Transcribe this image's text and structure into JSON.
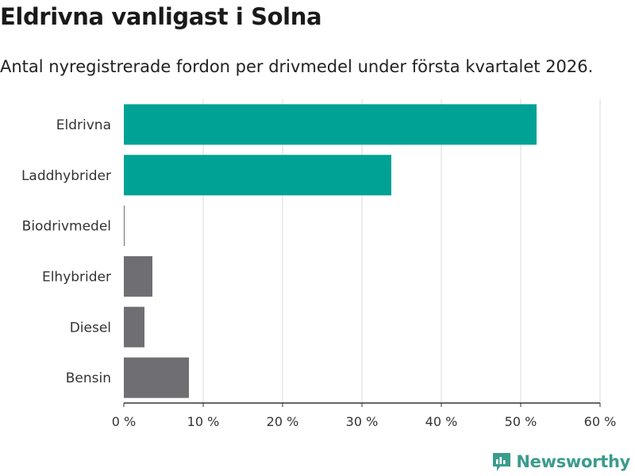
{
  "chart_data": {
    "type": "bar",
    "orientation": "horizontal",
    "title": "Eldrivna vanligast i Solna",
    "subtitle": "Antal nyregistrerade fordon per drivmedel under första kvartalet 2026.",
    "categories": [
      "Eldrivna",
      "Laddhybrider",
      "Biodrivmedel",
      "Elhybrider",
      "Diesel",
      "Bensin"
    ],
    "values": [
      52,
      33.7,
      0.1,
      3.6,
      2.6,
      8.2
    ],
    "value_unit": "%",
    "xlim": [
      0,
      60
    ],
    "xticks": [
      0,
      10,
      20,
      30,
      40,
      50,
      60
    ],
    "tick_labels": [
      "0 %",
      "10 %",
      "20 %",
      "30 %",
      "40 %",
      "50 %",
      "60 %"
    ],
    "xlabel": "",
    "ylabel": "",
    "grid": true,
    "colors": [
      "#00a295",
      "#00a295",
      "#6f6e73",
      "#6f6e73",
      "#6f6e73",
      "#6f6e73"
    ],
    "grid_color": "#d9d9d9",
    "axis_color": "#333333"
  },
  "branding": {
    "logo_text": "Newsworthy",
    "logo_color": "#3a9c8c"
  }
}
